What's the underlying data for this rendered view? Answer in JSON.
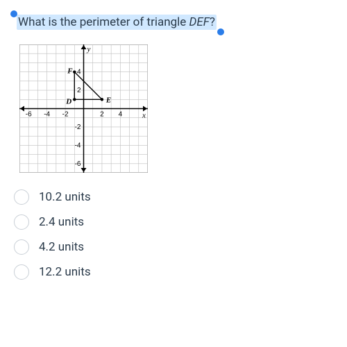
{
  "question": {
    "prefix": "What is the perimeter of triangle ",
    "italic": "DEF",
    "suffix": "?"
  },
  "chart": {
    "type": "scatter-line-grid",
    "width": 185,
    "height": 185,
    "bg": "#ffffff",
    "border_color": "#333333",
    "grid_color": "#bfbfbf",
    "axis_color": "#000000",
    "xlim": [
      -7,
      7
    ],
    "ylim": [
      -7,
      7
    ],
    "xticks": [
      -6,
      -4,
      -2,
      2,
      4
    ],
    "yticks": [
      -6,
      -4,
      -2,
      2,
      4
    ],
    "tick_fontsize": 10,
    "axis_labels": {
      "x": "x",
      "y": "y"
    },
    "points": {
      "D": {
        "x": -1,
        "y": 1,
        "label_dx": -12,
        "label_dy": 6
      },
      "E": {
        "x": 2,
        "y": 1,
        "label_dx": 6,
        "label_dy": 4
      },
      "F": {
        "x": -1,
        "y": 4,
        "label_dx": -10,
        "label_dy": 2
      }
    },
    "triangle_color": "#000000",
    "point_color": "#000000",
    "point_radius": 2.2
  },
  "options": [
    {
      "label": "10.2 units"
    },
    {
      "label": "2.4 units"
    },
    {
      "label": "4.2 units"
    },
    {
      "label": "12.2 units"
    }
  ]
}
